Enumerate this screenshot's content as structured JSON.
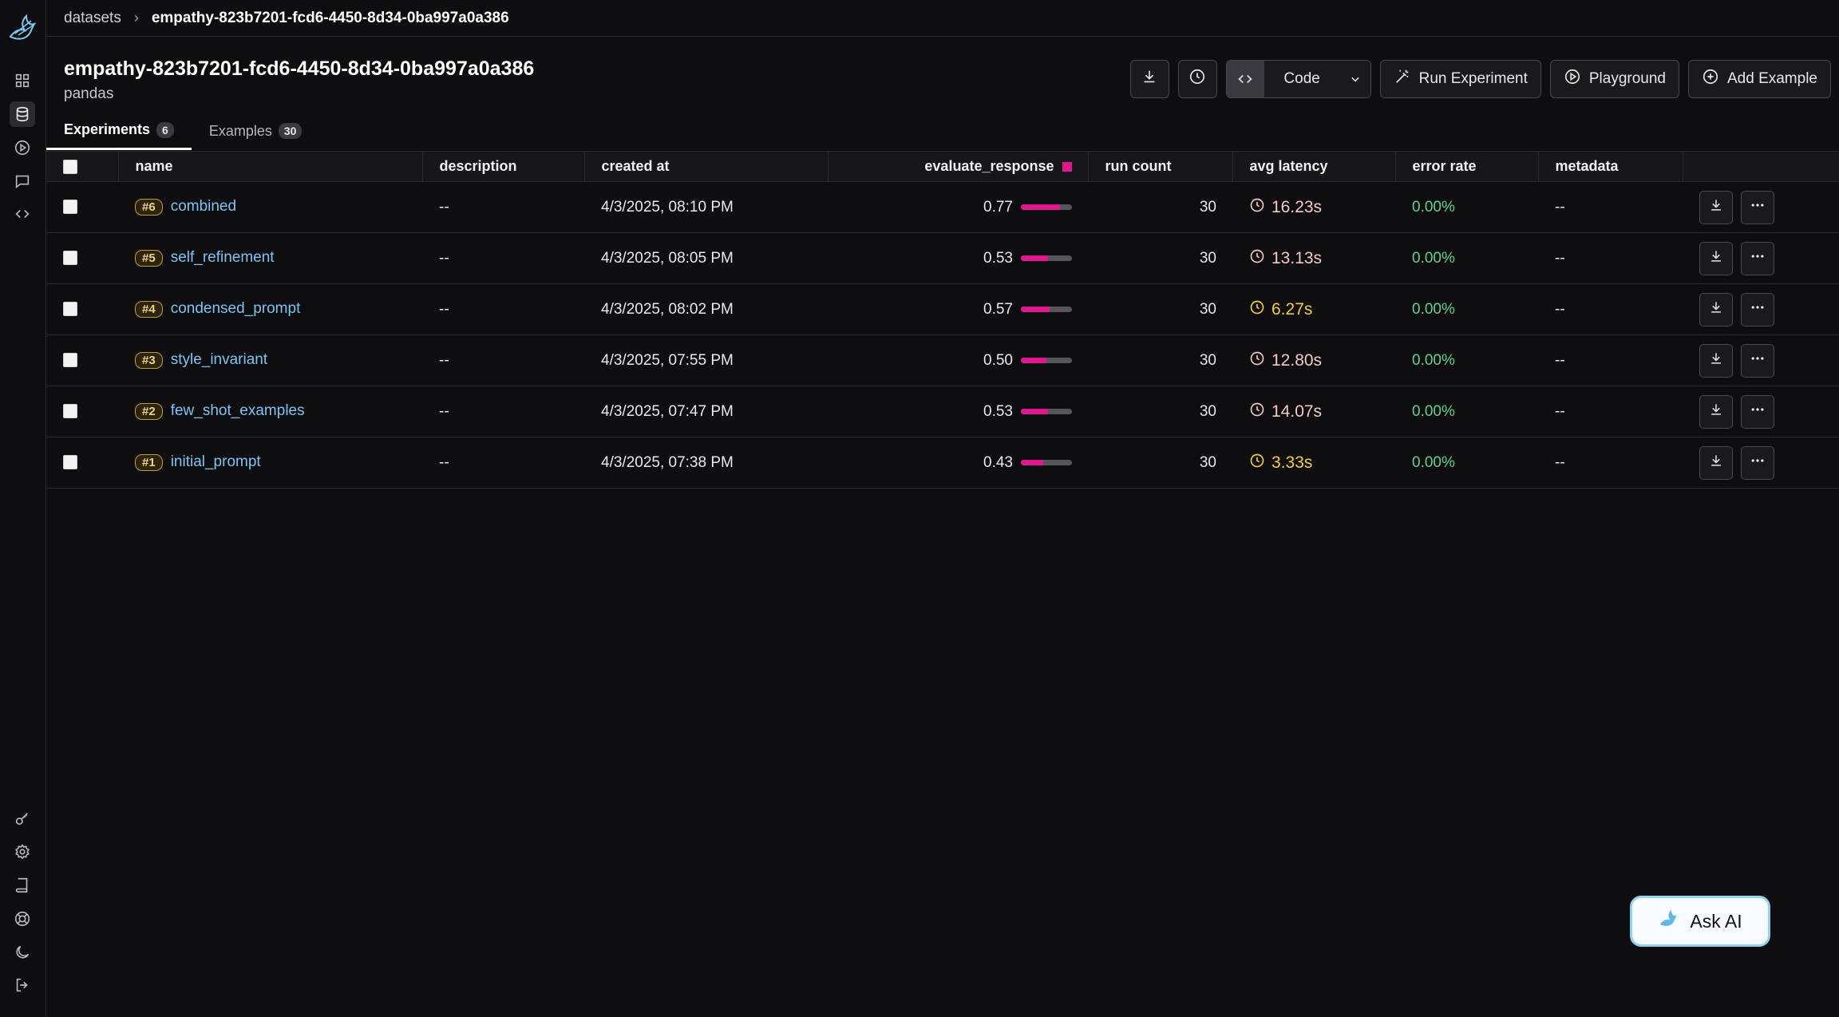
{
  "breadcrumb": {
    "root": "datasets",
    "separator": "›",
    "current": "empathy-823b7201-fcd6-4450-8d34-0ba997a0a386"
  },
  "dataset": {
    "title": "empathy-823b7201-fcd6-4450-8d34-0ba997a0a386",
    "subtitle": "pandas"
  },
  "toolbar": {
    "code_label": "Code",
    "run_experiment_label": "Run Experiment",
    "playground_label": "Playground",
    "add_example_label": "Add Example"
  },
  "tabs": [
    {
      "label": "Experiments",
      "count": "6",
      "active": true
    },
    {
      "label": "Examples",
      "count": "30",
      "active": false
    }
  ],
  "columns": {
    "name": "name",
    "description": "description",
    "created_at": "created at",
    "evaluate_response": "evaluate_response",
    "run_count": "run count",
    "avg_latency": "avg latency",
    "error_rate": "error rate",
    "metadata": "metadata"
  },
  "rows": [
    {
      "seq": "#6",
      "name": "combined",
      "description": "--",
      "created_at": "4/3/2025, 08:10 PM",
      "score": "0.77",
      "score_value": 0.77,
      "run_count": "30",
      "latency": "16.23s",
      "latency_level": "slow",
      "error_rate": "0.00%",
      "metadata": "--"
    },
    {
      "seq": "#5",
      "name": "self_refinement",
      "description": "--",
      "created_at": "4/3/2025, 08:05 PM",
      "score": "0.53",
      "score_value": 0.53,
      "run_count": "30",
      "latency": "13.13s",
      "latency_level": "slow",
      "error_rate": "0.00%",
      "metadata": "--"
    },
    {
      "seq": "#4",
      "name": "condensed_prompt",
      "description": "--",
      "created_at": "4/3/2025, 08:02 PM",
      "score": "0.57",
      "score_value": 0.57,
      "run_count": "30",
      "latency": "6.27s",
      "latency_level": "fast",
      "error_rate": "0.00%",
      "metadata": "--"
    },
    {
      "seq": "#3",
      "name": "style_invariant",
      "description": "--",
      "created_at": "4/3/2025, 07:55 PM",
      "score": "0.50",
      "score_value": 0.5,
      "run_count": "30",
      "latency": "12.80s",
      "latency_level": "slow",
      "error_rate": "0.00%",
      "metadata": "--"
    },
    {
      "seq": "#2",
      "name": "few_shot_examples",
      "description": "--",
      "created_at": "4/3/2025, 07:47 PM",
      "score": "0.53",
      "score_value": 0.53,
      "run_count": "30",
      "latency": "14.07s",
      "latency_level": "slow",
      "error_rate": "0.00%",
      "metadata": "--"
    },
    {
      "seq": "#1",
      "name": "initial_prompt",
      "description": "--",
      "created_at": "4/3/2025, 07:38 PM",
      "score": "0.43",
      "score_value": 0.43,
      "run_count": "30",
      "latency": "3.33s",
      "latency_level": "fast",
      "error_rate": "0.00%",
      "metadata": "--"
    }
  ],
  "ask_ai": {
    "label": "Ask AI"
  },
  "colors": {
    "accent": "#e0178e",
    "link": "#7cc4f2",
    "success": "#5fd38a",
    "warning": "#f4cf3c"
  },
  "icons": {
    "sidebar_top": [
      "grid-icon",
      "database-icon",
      "play-icon",
      "chat-icon",
      "code-icon"
    ],
    "sidebar_bottom": [
      "key-icon",
      "gear-icon",
      "book-icon",
      "lifebuoy-icon",
      "moon-icon",
      "logout-icon"
    ]
  }
}
